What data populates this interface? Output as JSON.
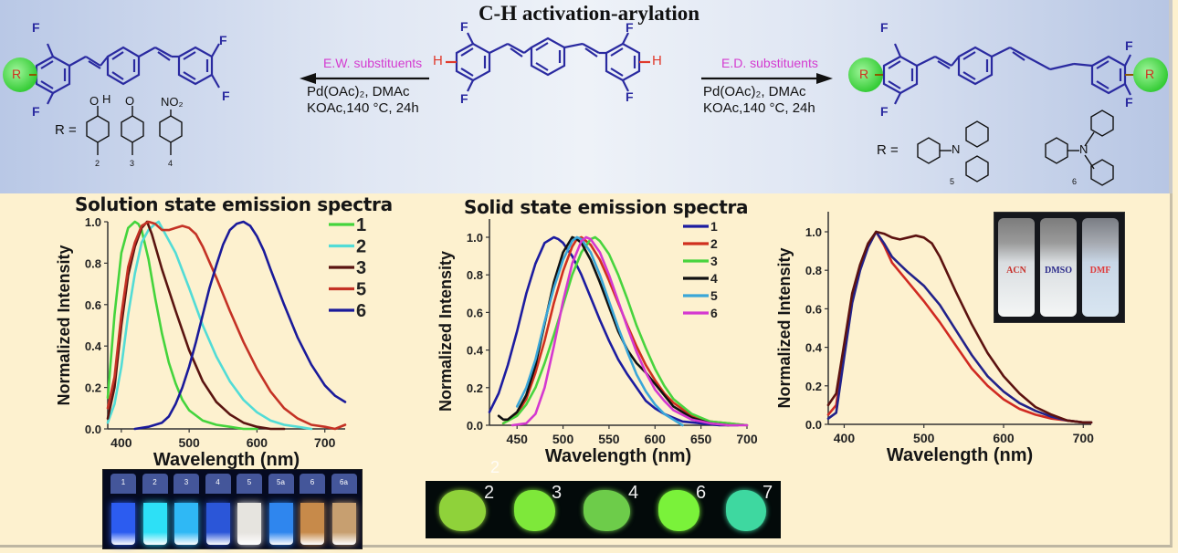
{
  "scheme": {
    "title": "C-H activation-arylation",
    "left_arrow": {
      "label": "E.W. substituents",
      "conditions_line1": "Pd(OAc)₂, DMAc",
      "conditions_line2": "KOAc,140 °C, 24h"
    },
    "right_arrow": {
      "label": "E.D. substituents",
      "conditions_line1": "Pd(OAc)₂, DMAc",
      "conditions_line2": "KOAc,140 °C, 24h"
    },
    "atoms": {
      "F": "F",
      "H": "H",
      "R": "R",
      "N": "N",
      "O": "O",
      "NO2": "NO₂"
    },
    "r_label": "R =",
    "left_compounds": [
      "2",
      "3",
      "4"
    ],
    "right_compounds": [
      "5",
      "6"
    ],
    "colors": {
      "backbone": "#2a2aa0",
      "h_atom": "#e03a2c",
      "substituent_label": "#d43bd0",
      "r_circle": "#49d84a"
    }
  },
  "chart_data": [
    {
      "type": "line",
      "title": "Solution state emission spectra",
      "xlabel": "Wavelength (nm)",
      "ylabel": "Normalized Intensity",
      "xlim": [
        380,
        730
      ],
      "ylim": [
        0,
        1.0
      ],
      "xticks": [
        400,
        500,
        600,
        700
      ],
      "yticks": [
        "0.0",
        "0.2",
        "0.4",
        "0.6",
        "0.8",
        "1.0"
      ],
      "grid": false,
      "legend_position": "upper right",
      "series": [
        {
          "name": "1",
          "color": "#44d43c",
          "x": [
            380,
            390,
            400,
            410,
            420,
            425,
            430,
            440,
            450,
            460,
            470,
            480,
            490,
            500,
            520,
            540,
            560,
            580,
            600
          ],
          "y": [
            0.15,
            0.55,
            0.85,
            0.97,
            1.0,
            0.99,
            0.96,
            0.82,
            0.63,
            0.46,
            0.32,
            0.22,
            0.14,
            0.09,
            0.04,
            0.02,
            0.01,
            0.0,
            0.0
          ]
        },
        {
          "name": "2",
          "color": "#52dcd6",
          "x": [
            380,
            390,
            400,
            410,
            420,
            430,
            440,
            450,
            455,
            460,
            480,
            500,
            520,
            540,
            560,
            580,
            600,
            620,
            640,
            660,
            680
          ],
          "y": [
            0.03,
            0.12,
            0.3,
            0.55,
            0.75,
            0.9,
            0.96,
            0.99,
            1.0,
            0.97,
            0.85,
            0.68,
            0.5,
            0.35,
            0.23,
            0.14,
            0.08,
            0.04,
            0.02,
            0.01,
            0.0
          ]
        },
        {
          "name": "3",
          "color": "#5a1410",
          "x": [
            380,
            390,
            400,
            410,
            420,
            430,
            438,
            445,
            460,
            480,
            500,
            520,
            540,
            560,
            580,
            600,
            620,
            640
          ],
          "y": [
            0.05,
            0.2,
            0.5,
            0.74,
            0.88,
            0.97,
            1.0,
            0.94,
            0.77,
            0.57,
            0.38,
            0.23,
            0.13,
            0.07,
            0.03,
            0.01,
            0.0,
            0.0
          ]
        },
        {
          "name": "5",
          "color": "#c43225",
          "x": [
            380,
            390,
            400,
            410,
            420,
            430,
            440,
            450,
            460,
            470,
            480,
            490,
            500,
            510,
            520,
            540,
            560,
            580,
            600,
            620,
            640,
            660,
            680,
            700,
            715,
            730
          ],
          "y": [
            0.1,
            0.25,
            0.55,
            0.78,
            0.9,
            0.98,
            1.0,
            0.99,
            0.96,
            0.96,
            0.97,
            0.98,
            0.97,
            0.94,
            0.88,
            0.73,
            0.57,
            0.42,
            0.29,
            0.18,
            0.1,
            0.05,
            0.02,
            0.01,
            0.0,
            0.02
          ]
        },
        {
          "name": "6",
          "color": "#1a1a9a",
          "x": [
            420,
            440,
            460,
            470,
            480,
            490,
            500,
            510,
            520,
            530,
            540,
            550,
            560,
            570,
            580,
            590,
            600,
            610,
            620,
            640,
            660,
            680,
            700,
            715,
            730
          ],
          "y": [
            0.0,
            0.01,
            0.03,
            0.06,
            0.12,
            0.2,
            0.3,
            0.42,
            0.55,
            0.68,
            0.79,
            0.89,
            0.96,
            0.99,
            1.0,
            0.98,
            0.93,
            0.86,
            0.77,
            0.6,
            0.44,
            0.31,
            0.21,
            0.16,
            0.13
          ]
        }
      ]
    },
    {
      "type": "line",
      "title": "Solid state emission spectra",
      "xlabel": "Wavelength (nm)",
      "ylabel": "Normalized Intensity",
      "xlim": [
        420,
        700
      ],
      "ylim": [
        0,
        1.1
      ],
      "xticks": [
        450,
        500,
        550,
        600,
        650,
        700
      ],
      "yticks": [
        "0.0",
        "0.2",
        "0.4",
        "0.6",
        "0.8",
        "1.0"
      ],
      "grid": false,
      "legend_position": "upper right",
      "series": [
        {
          "name": "1",
          "color": "#1c1ca0",
          "x": [
            420,
            430,
            440,
            450,
            460,
            470,
            480,
            490,
            495,
            500,
            510,
            520,
            530,
            540,
            550,
            560,
            570,
            580,
            590,
            600,
            610,
            620,
            630,
            650,
            670,
            690
          ],
          "y": [
            0.07,
            0.17,
            0.32,
            0.5,
            0.7,
            0.86,
            0.97,
            1.0,
            0.99,
            0.97,
            0.9,
            0.8,
            0.68,
            0.56,
            0.45,
            0.35,
            0.27,
            0.2,
            0.13,
            0.09,
            0.06,
            0.04,
            0.02,
            0.01,
            0.0,
            0.0
          ]
        },
        {
          "name": "2",
          "color": "#d0301f",
          "x": [
            435,
            450,
            460,
            470,
            480,
            490,
            500,
            510,
            515,
            520,
            530,
            540,
            550,
            560,
            570,
            580,
            590,
            600,
            610,
            620,
            640,
            660,
            680,
            700
          ],
          "y": [
            0.01,
            0.06,
            0.14,
            0.28,
            0.45,
            0.65,
            0.82,
            0.95,
            0.99,
            1.0,
            0.96,
            0.88,
            0.77,
            0.65,
            0.53,
            0.42,
            0.32,
            0.24,
            0.17,
            0.12,
            0.05,
            0.02,
            0.01,
            0.0
          ]
        },
        {
          "name": "3",
          "color": "#48d43e",
          "x": [
            435,
            450,
            460,
            470,
            480,
            490,
            500,
            510,
            520,
            530,
            535,
            540,
            550,
            560,
            570,
            580,
            590,
            600,
            610,
            620,
            640,
            660,
            680,
            700
          ],
          "y": [
            0.01,
            0.05,
            0.11,
            0.2,
            0.33,
            0.48,
            0.64,
            0.8,
            0.92,
            0.99,
            1.0,
            0.98,
            0.91,
            0.8,
            0.67,
            0.53,
            0.41,
            0.3,
            0.21,
            0.14,
            0.06,
            0.02,
            0.01,
            0.0
          ]
        },
        {
          "name": "4",
          "color": "#111111",
          "x": [
            430,
            435,
            440,
            450,
            460,
            470,
            480,
            490,
            500,
            510,
            515,
            520,
            530,
            540,
            550,
            560,
            570,
            580,
            590,
            600,
            610,
            620,
            640,
            660,
            680
          ],
          "y": [
            0.05,
            0.03,
            0.03,
            0.07,
            0.16,
            0.32,
            0.54,
            0.76,
            0.92,
            1.0,
            0.99,
            0.97,
            0.88,
            0.76,
            0.63,
            0.5,
            0.4,
            0.33,
            0.28,
            0.22,
            0.16,
            0.1,
            0.04,
            0.01,
            0.0
          ]
        },
        {
          "name": "5",
          "color": "#3aa6d8",
          "x": [
            450,
            460,
            470,
            480,
            490,
            500,
            510,
            515,
            520,
            530,
            540,
            550,
            560,
            570,
            580,
            590,
            600,
            610,
            620,
            630
          ],
          "y": [
            0.1,
            0.2,
            0.35,
            0.55,
            0.73,
            0.88,
            0.98,
            1.0,
            0.99,
            0.92,
            0.8,
            0.66,
            0.52,
            0.39,
            0.27,
            0.18,
            0.11,
            0.06,
            0.03,
            0.0
          ]
        },
        {
          "name": "6",
          "color": "#d438d0",
          "x": [
            445,
            460,
            470,
            480,
            490,
            500,
            510,
            520,
            525,
            530,
            540,
            550,
            560,
            570,
            580,
            590,
            600,
            610,
            620,
            640,
            660,
            680,
            700
          ],
          "y": [
            0.0,
            0.01,
            0.06,
            0.2,
            0.42,
            0.66,
            0.86,
            0.98,
            1.0,
            0.99,
            0.92,
            0.8,
            0.66,
            0.52,
            0.39,
            0.28,
            0.19,
            0.13,
            0.08,
            0.03,
            0.01,
            0.0,
            0.0
          ]
        }
      ]
    },
    {
      "type": "line",
      "title": "",
      "xlabel": "Wavelength (nm)",
      "ylabel": "Normalized Intensity",
      "xlim": [
        380,
        710
      ],
      "ylim": [
        0,
        1.1
      ],
      "xticks": [
        400,
        500,
        600,
        700
      ],
      "yticks": [
        "0.0",
        "0.2",
        "0.4",
        "0.6",
        "0.8",
        "1.0"
      ],
      "grid": false,
      "legend_position": "none",
      "inset_labels": [
        "ACN",
        "DMSO",
        "DMF"
      ],
      "series": [
        {
          "name": "ACN",
          "color": "#d02a22",
          "x": [
            380,
            390,
            400,
            410,
            420,
            430,
            440,
            450,
            460,
            470,
            480,
            500,
            520,
            540,
            560,
            580,
            600,
            620,
            640,
            660,
            680,
            700,
            710
          ],
          "y": [
            0.05,
            0.1,
            0.4,
            0.66,
            0.82,
            0.93,
            1.0,
            0.93,
            0.84,
            0.79,
            0.74,
            0.64,
            0.53,
            0.41,
            0.29,
            0.2,
            0.13,
            0.08,
            0.05,
            0.03,
            0.02,
            0.01,
            0.01
          ]
        },
        {
          "name": "DMSO",
          "color": "#22228a",
          "x": [
            380,
            390,
            400,
            410,
            420,
            430,
            440,
            450,
            460,
            470,
            480,
            500,
            520,
            540,
            560,
            580,
            600,
            620,
            640,
            660,
            680,
            700,
            710
          ],
          "y": [
            0.03,
            0.06,
            0.35,
            0.63,
            0.8,
            0.92,
            1.0,
            0.94,
            0.87,
            0.83,
            0.79,
            0.72,
            0.62,
            0.49,
            0.36,
            0.25,
            0.17,
            0.11,
            0.07,
            0.04,
            0.02,
            0.01,
            0.01
          ]
        },
        {
          "name": "DMF",
          "color": "#5c1210",
          "x": [
            380,
            390,
            400,
            410,
            420,
            430,
            440,
            450,
            460,
            470,
            480,
            490,
            500,
            510,
            520,
            540,
            560,
            580,
            600,
            620,
            640,
            660,
            680,
            700,
            710
          ],
          "y": [
            0.1,
            0.16,
            0.42,
            0.68,
            0.83,
            0.94,
            1.0,
            0.99,
            0.97,
            0.96,
            0.97,
            0.98,
            0.97,
            0.94,
            0.87,
            0.69,
            0.52,
            0.37,
            0.25,
            0.16,
            0.09,
            0.05,
            0.02,
            0.01,
            0.01
          ]
        }
      ]
    }
  ],
  "photos": {
    "solution_vials": [
      {
        "label": "1",
        "color": "#2c5cf0"
      },
      {
        "label": "2",
        "color": "#2de0f6"
      },
      {
        "label": "3",
        "color": "#2fb8f5"
      },
      {
        "label": "4",
        "color": "#2b56d8"
      },
      {
        "label": "5",
        "color": "#e6e4df"
      },
      {
        "label": "5a",
        "color": "#2f86ee"
      },
      {
        "label": "6",
        "color": "#c78a4a"
      },
      {
        "label": "6a",
        "color": "#c79f70"
      }
    ],
    "solid_powders": [
      {
        "label": "2",
        "color": "#8fd23a"
      },
      {
        "label": "3",
        "color": "#7ee83a"
      },
      {
        "label": "4",
        "color": "#6dcc4a"
      },
      {
        "label": "6",
        "color": "#7af23a"
      },
      {
        "label": "7",
        "color": "#3ed8a0"
      }
    ],
    "floating_label": "2",
    "inset_solvents": [
      {
        "label": "ACN",
        "color": "#c8302a"
      },
      {
        "label": "DMSO",
        "color": "#2a2a8a"
      },
      {
        "label": "DMF",
        "color": "#e03a3a"
      }
    ]
  }
}
